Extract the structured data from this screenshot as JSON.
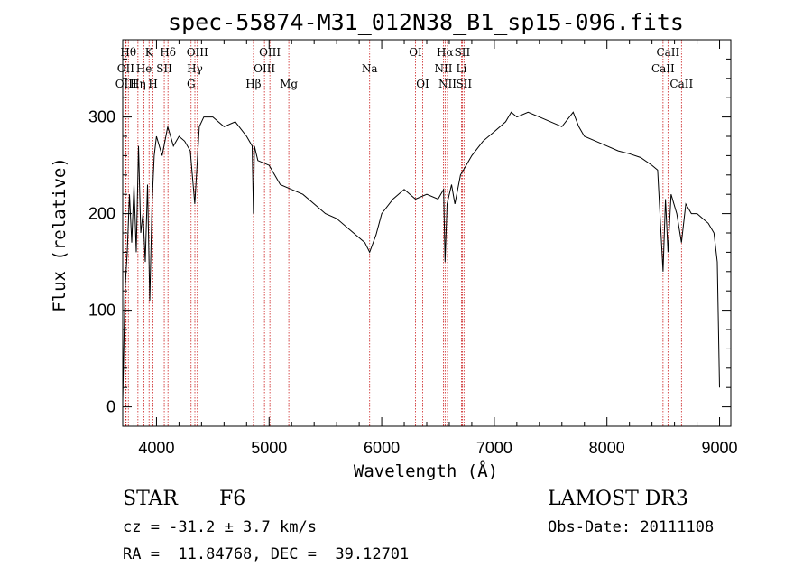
{
  "chart_data": {
    "type": "line",
    "title": "spec-55874-M31_012N38_B1_sp15-096.fits",
    "xlabel": "Wavelength (Å)",
    "ylabel": "Flux (relative)",
    "xlim": [
      3700,
      9100
    ],
    "ylim": [
      -20,
      380
    ],
    "x_ticks": [
      4000,
      5000,
      6000,
      7000,
      8000,
      9000
    ],
    "y_ticks": [
      0,
      100,
      200,
      300
    ],
    "series": [
      {
        "name": "flux",
        "x": [
          3700,
          3720,
          3740,
          3760,
          3780,
          3800,
          3820,
          3840,
          3860,
          3880,
          3900,
          3920,
          3940,
          3960,
          3980,
          4000,
          4050,
          4100,
          4150,
          4200,
          4250,
          4300,
          4340,
          4380,
          4420,
          4500,
          4600,
          4700,
          4800,
          4850,
          4861,
          4870,
          4900,
          5000,
          5100,
          5200,
          5300,
          5400,
          5500,
          5600,
          5700,
          5800,
          5850,
          5893,
          5950,
          6000,
          6100,
          6200,
          6300,
          6400,
          6500,
          6550,
          6563,
          6580,
          6620,
          6650,
          6700,
          6750,
          6800,
          6900,
          7000,
          7100,
          7150,
          7200,
          7300,
          7400,
          7500,
          7600,
          7700,
          7750,
          7800,
          7900,
          8000,
          8100,
          8200,
          8300,
          8400,
          8450,
          8498,
          8520,
          8542,
          8570,
          8620,
          8662,
          8700,
          8750,
          8800,
          8850,
          8900,
          8950,
          8980,
          9000
        ],
        "y": [
          5,
          120,
          160,
          220,
          170,
          230,
          160,
          270,
          180,
          200,
          150,
          230,
          110,
          210,
          260,
          280,
          260,
          290,
          270,
          280,
          275,
          265,
          210,
          290,
          300,
          300,
          290,
          295,
          280,
          270,
          200,
          270,
          255,
          250,
          230,
          225,
          220,
          210,
          200,
          195,
          185,
          175,
          170,
          160,
          178,
          200,
          215,
          225,
          215,
          220,
          215,
          225,
          150,
          210,
          230,
          210,
          240,
          250,
          260,
          275,
          285,
          295,
          305,
          300,
          305,
          300,
          295,
          290,
          305,
          290,
          280,
          275,
          270,
          265,
          262,
          258,
          250,
          245,
          140,
          215,
          160,
          220,
          200,
          170,
          210,
          200,
          200,
          195,
          190,
          180,
          150,
          20
        ]
      }
    ],
    "line_markers": [
      {
        "label": "Hθ",
        "x": 3750,
        "row": 1
      },
      {
        "label": "OII",
        "x": 3727,
        "row": 2
      },
      {
        "label": "OIII",
        "x": 3730,
        "row": 3
      },
      {
        "label": "Hη",
        "x": 3835,
        "row": 3
      },
      {
        "label": "He",
        "x": 3889,
        "row": 2
      },
      {
        "label": "K",
        "x": 3934,
        "row": 1
      },
      {
        "label": "H",
        "x": 3969,
        "row": 3
      },
      {
        "label": "SII",
        "x": 4069,
        "row": 2
      },
      {
        "label": "Hδ",
        "x": 4102,
        "row": 1
      },
      {
        "label": "OIII",
        "x": 4363,
        "row": 1
      },
      {
        "label": "Hγ",
        "x": 4341,
        "row": 2
      },
      {
        "label": "G",
        "x": 4307,
        "row": 3
      },
      {
        "label": "Hβ",
        "x": 4861,
        "row": 3
      },
      {
        "label": "OIII",
        "x": 4959,
        "row": 2
      },
      {
        "label": "OIII",
        "x": 5007,
        "row": 1
      },
      {
        "label": "Mg",
        "x": 5175,
        "row": 3
      },
      {
        "label": "Na",
        "x": 5893,
        "row": 2
      },
      {
        "label": "OI",
        "x": 6300,
        "row": 1
      },
      {
        "label": "OI",
        "x": 6364,
        "row": 3
      },
      {
        "label": "Hα",
        "x": 6563,
        "row": 1
      },
      {
        "label": "NII",
        "x": 6548,
        "row": 2
      },
      {
        "label": "NII",
        "x": 6584,
        "row": 3
      },
      {
        "label": "SII",
        "x": 6716,
        "row": 1
      },
      {
        "label": "Li",
        "x": 6708,
        "row": 2
      },
      {
        "label": "SII",
        "x": 6731,
        "row": 3
      },
      {
        "label": "CaII",
        "x": 8542,
        "row": 1
      },
      {
        "label": "CaII",
        "x": 8498,
        "row": 2
      },
      {
        "label": "CaII",
        "x": 8662,
        "row": 3
      }
    ]
  },
  "info": {
    "object_class": "STAR",
    "subclass": "F6",
    "survey": "LAMOST DR3",
    "cz": "cz = -31.2 ± 3.7 km/s",
    "obs_date": "Obs-Date: 20111108",
    "radec": "RA =  11.84768, DEC =  39.12701"
  },
  "colors": {
    "spectrum": "#000000",
    "marker_line": "#cc2222",
    "axes": "#000000",
    "background": "#ffffff"
  }
}
